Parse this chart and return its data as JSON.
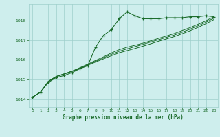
{
  "title": "Graphe pression niveau de la mer (hPa)",
  "bg_color": "#ceeeed",
  "grid_color": "#9ecfcb",
  "line_color": "#1a6b2a",
  "xlim": [
    -0.5,
    23.5
  ],
  "ylim": [
    1013.6,
    1018.85
  ],
  "yticks": [
    1014,
    1015,
    1016,
    1017,
    1018
  ],
  "xticks": [
    0,
    1,
    2,
    3,
    4,
    5,
    6,
    7,
    8,
    9,
    10,
    11,
    12,
    13,
    14,
    15,
    16,
    17,
    18,
    19,
    20,
    21,
    22,
    23
  ],
  "series1": [
    1014.1,
    1014.35,
    1014.85,
    1015.1,
    1015.2,
    1015.35,
    1015.55,
    1015.7,
    1016.65,
    1017.25,
    1017.55,
    1018.1,
    1018.45,
    1018.25,
    1018.1,
    1018.1,
    1018.1,
    1018.15,
    1018.15,
    1018.15,
    1018.2,
    1018.2,
    1018.25,
    1018.2
  ],
  "series2": [
    1014.1,
    1014.35,
    1014.9,
    1015.15,
    1015.28,
    1015.42,
    1015.6,
    1015.78,
    1015.97,
    1016.15,
    1016.35,
    1016.52,
    1016.65,
    1016.75,
    1016.85,
    1016.97,
    1017.1,
    1017.22,
    1017.35,
    1017.5,
    1017.65,
    1017.82,
    1018.0,
    1018.2
  ],
  "series3": [
    1014.1,
    1014.35,
    1014.9,
    1015.15,
    1015.28,
    1015.42,
    1015.58,
    1015.75,
    1015.93,
    1016.1,
    1016.28,
    1016.44,
    1016.56,
    1016.68,
    1016.79,
    1016.91,
    1017.03,
    1017.15,
    1017.27,
    1017.42,
    1017.57,
    1017.74,
    1017.93,
    1018.13
  ],
  "series4": [
    1014.1,
    1014.35,
    1014.9,
    1015.15,
    1015.28,
    1015.42,
    1015.56,
    1015.72,
    1015.89,
    1016.05,
    1016.21,
    1016.36,
    1016.47,
    1016.58,
    1016.7,
    1016.82,
    1016.95,
    1017.07,
    1017.19,
    1017.34,
    1017.49,
    1017.66,
    1017.85,
    1018.06
  ]
}
